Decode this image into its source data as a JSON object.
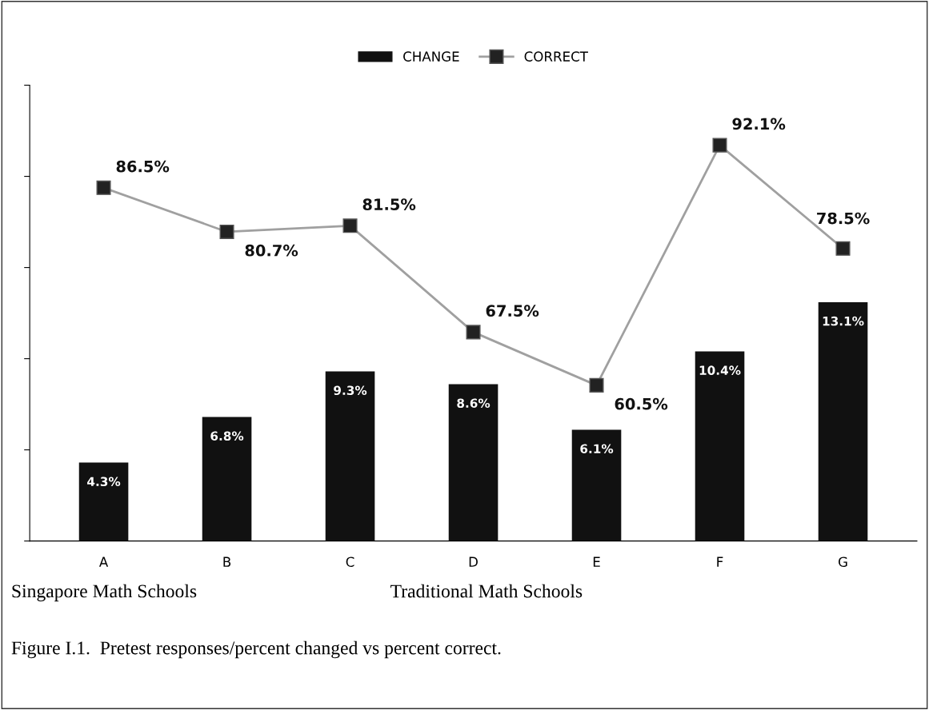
{
  "chart_data": {
    "type": "bar",
    "categories": [
      "A",
      "B",
      "C",
      "D",
      "E",
      "F",
      "G"
    ],
    "series": [
      {
        "name": "CHANGE",
        "color": "#111111",
        "values": [
          4.3,
          6.8,
          9.3,
          8.6,
          6.1,
          10.4,
          13.1
        ],
        "value_labels": [
          "4.3%",
          "6.8%",
          "9.3%",
          "8.6%",
          "6.1%",
          "10.4%",
          "13.1%"
        ]
      },
      {
        "name": "CORRECT",
        "type": "line",
        "axis": "y2",
        "color": "#a0a0a0",
        "values": [
          86.5,
          80.7,
          81.5,
          67.5,
          60.5,
          92.1,
          78.5
        ],
        "value_labels": [
          "86.5%",
          "80.7%",
          "81.5%",
          "67.5%",
          "60.5%",
          "92.1%",
          "78.5%"
        ]
      }
    ],
    "ylim": [
      0,
      25
    ],
    "yticks": [
      {
        "value": 0,
        "label": null
      },
      {
        "value": 5,
        "label": null
      },
      {
        "value": 10,
        "label": null
      },
      {
        "value": 15,
        "label": null
      },
      {
        "value": 20,
        "label": null
      },
      {
        "value": 25,
        "label": null
      }
    ],
    "y2lim": [
      40,
      100
    ],
    "tick_labels": "x",
    "marker": "square",
    "legend": "top",
    "grid": false,
    "annotations": [
      "Singapore Math Schools",
      "Traditional Math Schools",
      "Figure I.1.  Pretest responses/percent changed vs percent correct."
    ]
  }
}
